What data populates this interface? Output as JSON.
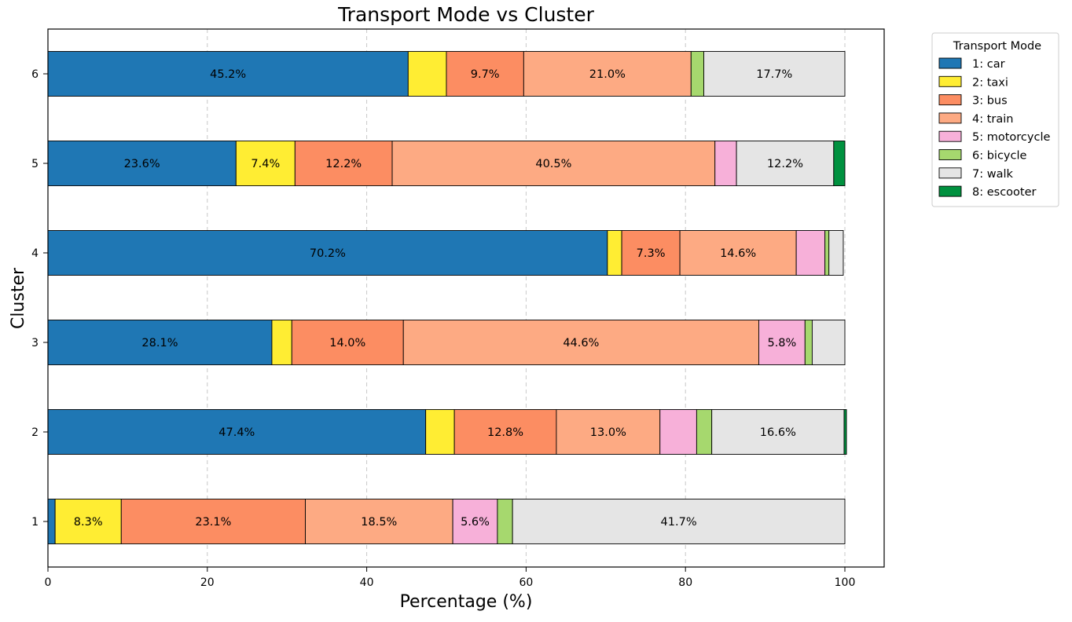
{
  "chart_data": {
    "type": "bar",
    "orientation": "horizontal",
    "stacked": true,
    "title": "Transport Mode vs Cluster",
    "xlabel": "Percentage (%)",
    "ylabel": "Cluster",
    "xlim": [
      0,
      100
    ],
    "xticks": [
      "0",
      "20",
      "40",
      "60",
      "80",
      "100"
    ],
    "grid": "x-dashed",
    "categories": [
      "1",
      "2",
      "3",
      "4",
      "5",
      "6"
    ],
    "legend": {
      "title": "Transport Mode",
      "placement": "outside-top-right"
    },
    "series": [
      {
        "name": "1: car",
        "color": "#1f77b4",
        "values": [
          0.9,
          47.4,
          28.1,
          70.2,
          23.6,
          45.2
        ],
        "labels": [
          "",
          "47.4%",
          "28.1%",
          "70.2%",
          "23.6%",
          "45.2%"
        ]
      },
      {
        "name": "2: taxi",
        "color": "#ffed33",
        "values": [
          8.3,
          3.6,
          2.5,
          1.8,
          7.4,
          4.8
        ],
        "labels": [
          "8.3%",
          "",
          "",
          "",
          "7.4%",
          ""
        ]
      },
      {
        "name": "3: bus",
        "color": "#fc8d62",
        "values": [
          23.1,
          12.8,
          14.0,
          7.3,
          12.2,
          9.7
        ],
        "labels": [
          "23.1%",
          "12.8%",
          "14.0%",
          "7.3%",
          "12.2%",
          "9.7%"
        ]
      },
      {
        "name": "4: train",
        "color": "#fdaa83",
        "values": [
          18.5,
          13.0,
          44.6,
          14.6,
          40.5,
          21.0
        ],
        "labels": [
          "18.5%",
          "13.0%",
          "44.6%",
          "14.6%",
          "40.5%",
          "21.0%"
        ]
      },
      {
        "name": "5: motorcycle",
        "color": "#f7b0d9",
        "values": [
          5.6,
          4.6,
          5.8,
          3.6,
          2.7,
          0
        ],
        "labels": [
          "5.6%",
          "",
          "5.8%",
          "",
          "",
          ""
        ]
      },
      {
        "name": "6: bicycle",
        "color": "#a6d86e",
        "values": [
          1.9,
          1.9,
          0.9,
          0.5,
          0,
          1.6
        ],
        "labels": [
          "",
          "",
          "",
          "",
          "",
          ""
        ]
      },
      {
        "name": "7: walk",
        "color": "#e5e5e5",
        "values": [
          41.7,
          16.6,
          4.1,
          1.8,
          12.2,
          17.7
        ],
        "labels": [
          "41.7%",
          "16.6%",
          "",
          "",
          "12.2%",
          "17.7%"
        ]
      },
      {
        "name": "8: escooter",
        "color": "#00913f",
        "values": [
          0,
          0.3,
          0,
          0,
          1.4,
          0
        ],
        "labels": [
          "",
          "",
          "",
          "",
          "",
          ""
        ]
      }
    ]
  }
}
